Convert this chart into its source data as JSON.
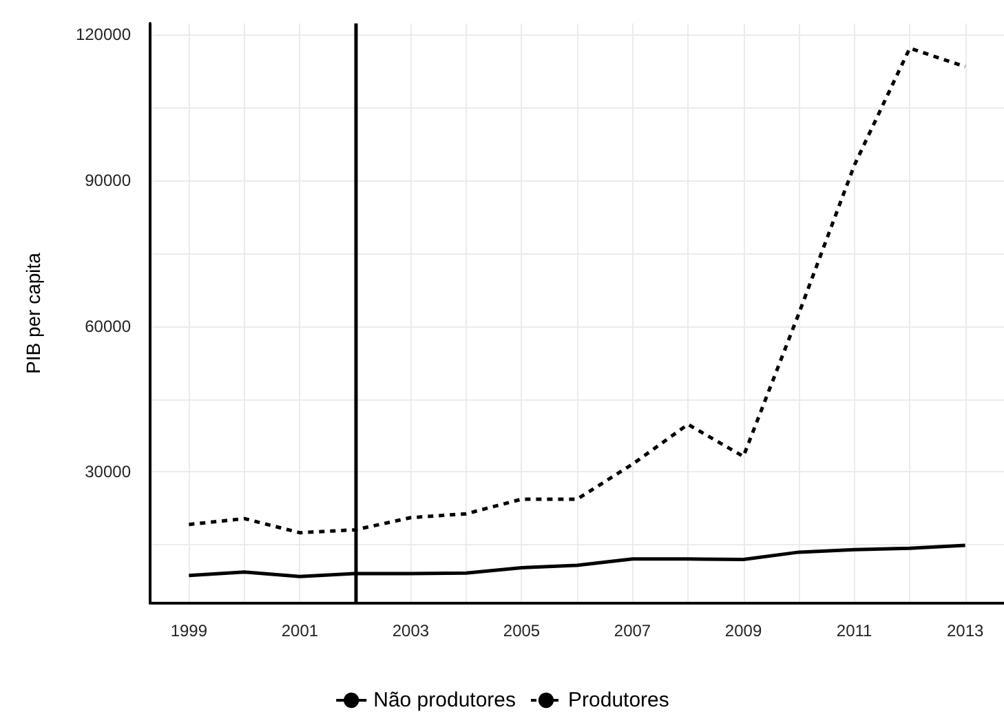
{
  "chart_data": {
    "type": "line",
    "ylabel": "PIB per capita",
    "x": [
      1999,
      2000,
      2001,
      2002,
      2003,
      2004,
      2005,
      2006,
      2007,
      2008,
      2009,
      2010,
      2011,
      2012,
      2013
    ],
    "series": [
      {
        "name": "Não produtores",
        "color": "#000000",
        "line_style": "solid",
        "values": [
          8700,
          9400,
          8500,
          9100,
          9100,
          9200,
          10300,
          10800,
          12100,
          12100,
          12000,
          13500,
          14000,
          14300,
          14900
        ]
      },
      {
        "name": "Produtores",
        "color": "#000000",
        "line_style": "dashed",
        "values": [
          19200,
          20400,
          17500,
          18100,
          20600,
          21400,
          24400,
          24400,
          31600,
          39800,
          33200,
          62600,
          93100,
          117200,
          113400
        ]
      }
    ],
    "xlim": [
      1998.3,
      2013.7
    ],
    "xticks": [
      1999,
      {
        "value": 2000,
        "label": null
      },
      2001,
      {
        "value": 2002,
        "label": null
      },
      2003,
      {
        "value": 2004,
        "label": null
      },
      2005,
      {
        "value": 2006,
        "label": null
      },
      2007,
      {
        "value": 2008,
        "label": null
      },
      2009,
      {
        "value": 2010,
        "label": null
      },
      2011,
      {
        "value": 2012,
        "label": null
      },
      2013
    ],
    "ylim": [
      3000,
      122300
    ],
    "yticks": [
      {
        "value": 15000,
        "label": null
      },
      30000,
      {
        "value": 45000,
        "label": null
      },
      60000,
      {
        "value": 75000,
        "label": null
      },
      90000,
      {
        "value": 105000,
        "label": null
      },
      120000
    ],
    "ref_lines": [
      {
        "axis": "x",
        "value": 2002,
        "color": "#000000",
        "line_style": "solid"
      }
    ],
    "grid": true,
    "legend": "bottom",
    "marker": "none"
  }
}
